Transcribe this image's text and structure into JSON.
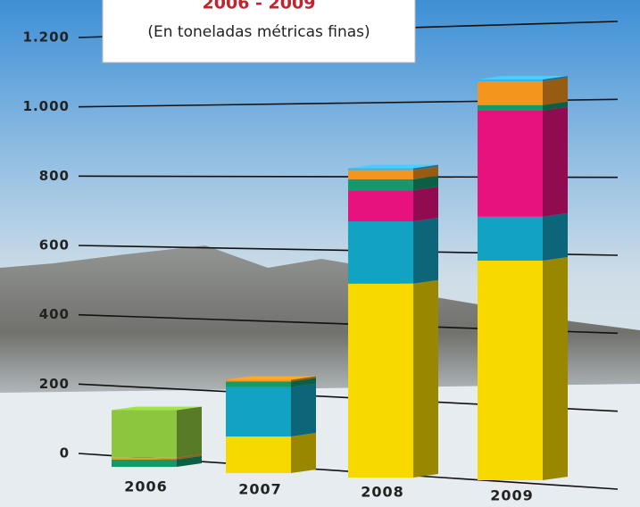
{
  "chart_data": {
    "type": "bar3d-stacked",
    "title": "2006 - 2009",
    "subtitle": "(En toneladas métricas finas)",
    "categories": [
      "2006",
      "2007",
      "2008",
      "2009"
    ],
    "series": [
      {
        "color": "#f7d900",
        "values": [
          0,
          100,
          530,
          600
        ]
      },
      {
        "color": "#13a3c2",
        "values": [
          0,
          135,
          170,
          120
        ]
      },
      {
        "color": "#e8127f",
        "values": [
          0,
          0,
          85,
          290
        ]
      },
      {
        "color": "#149a6a",
        "values": [
          20,
          15,
          30,
          15
        ]
      },
      {
        "color": "#f4951d",
        "values": [
          5,
          5,
          25,
          65
        ]
      },
      {
        "color": "#3fb3e8",
        "values": [
          0,
          0,
          5,
          5
        ]
      },
      {
        "color": "#8cc63f",
        "values": [
          130,
          0,
          0,
          0
        ]
      }
    ],
    "ylim": [
      0,
      1200
    ],
    "yticks": [
      0,
      200,
      400,
      600,
      800,
      {
        "value": 1000,
        "label": "1.000"
      },
      {
        "value": 1200,
        "label": "1.200"
      }
    ],
    "grid": true
  }
}
